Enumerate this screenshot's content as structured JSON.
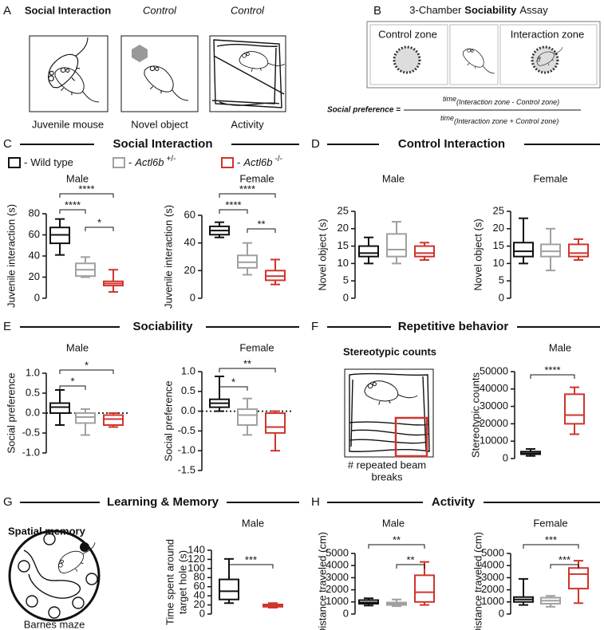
{
  "panel_a": {
    "letter": "A",
    "labels": [
      "Social Interaction",
      "Control",
      "Control"
    ],
    "captions": [
      "Juvenile mouse",
      "Novel object",
      "Activity"
    ]
  },
  "panel_b": {
    "letter": "B",
    "title": [
      "3-Chamber",
      "Sociability",
      "Assay"
    ],
    "zones": [
      "Control zone",
      "Interaction zone"
    ],
    "formula": {
      "lhs": "Social preference =",
      "numerator": [
        "time",
        "(Interaction zone - Control zone)"
      ],
      "denominator": [
        "time",
        "(Interaction zone + Control zone)"
      ]
    }
  },
  "sections": [
    {
      "letter": "C",
      "title": "Social Interaction"
    },
    {
      "letter": "D",
      "title": "Control Interaction"
    },
    {
      "letter": "E",
      "title": "Sociability"
    },
    {
      "letter": "F",
      "title": "Repetitive behavior"
    },
    {
      "letter": "G",
      "title": "Learning & Memory"
    },
    {
      "letter": "H",
      "title": "Activity"
    }
  ],
  "legend": [
    {
      "dash": "-",
      "label": "Wild type",
      "color": "#111111"
    },
    {
      "dash": "-",
      "gene": "Actl6b",
      "genotype": "+/-",
      "color": "#a0a0a0"
    },
    {
      "dash": "-",
      "gene": "Actl6b",
      "genotype": "-/-",
      "color": "#d0342c"
    }
  ],
  "illustrations": {
    "stereotypy_title": "Stereotypic counts",
    "stereotypy_caption": [
      "# repeated beam",
      "breaks"
    ],
    "spatial_title": "Spatial memory",
    "spatial_caption": "Barnes maze"
  },
  "chart_data": [
    {
      "type": "box",
      "title": "Male",
      "ylabel": [
        "Juvenile interaction (s)"
      ],
      "ylim": [
        0,
        80
      ],
      "yticks": [
        0,
        20,
        40,
        60,
        80
      ],
      "boxes": [
        {
          "color": "#111111",
          "min": 41,
          "q1": 52,
          "median": 60,
          "q3": 67,
          "max": 75
        },
        {
          "color": "#a0a0a0",
          "min": 20,
          "q1": 21,
          "median": 27,
          "q3": 33,
          "max": 39
        },
        {
          "color": "#d0342c",
          "min": 6,
          "q1": 12,
          "median": 14,
          "q3": 16,
          "max": 27
        }
      ],
      "comparisons": [
        {
          "groups": [
            0,
            2
          ],
          "label": "****"
        },
        {
          "groups": [
            0,
            1
          ],
          "label": "****"
        },
        {
          "groups": [
            1,
            2
          ],
          "label": "*"
        }
      ]
    },
    {
      "type": "box",
      "title": "Female",
      "ylabel": [
        "Juvenile interaction (s)"
      ],
      "ylim": [
        0,
        60
      ],
      "yticks": [
        0,
        20,
        40,
        60
      ],
      "boxes": [
        {
          "color": "#111111",
          "min": 44,
          "q1": 46,
          "median": 49,
          "q3": 52,
          "max": 55
        },
        {
          "color": "#a0a0a0",
          "min": 17,
          "q1": 22,
          "median": 26,
          "q3": 31,
          "max": 40
        },
        {
          "color": "#d0342c",
          "min": 10,
          "q1": 13,
          "median": 16,
          "q3": 20,
          "max": 28
        }
      ],
      "comparisons": [
        {
          "groups": [
            0,
            2
          ],
          "label": "****"
        },
        {
          "groups": [
            0,
            1
          ],
          "label": "****"
        },
        {
          "groups": [
            1,
            2
          ],
          "label": "**"
        }
      ]
    },
    {
      "type": "box",
      "title": "Male",
      "ylabel": [
        "Novel object (s)"
      ],
      "ylim": [
        0,
        25
      ],
      "yticks": [
        0,
        5,
        10,
        15,
        20,
        25
      ],
      "boxes": [
        {
          "color": "#111111",
          "min": 10,
          "q1": 12,
          "median": 13,
          "q3": 15,
          "max": 17.5
        },
        {
          "color": "#a0a0a0",
          "min": 10,
          "q1": 12,
          "median": 14,
          "q3": 18.5,
          "max": 22
        },
        {
          "color": "#d0342c",
          "min": 11,
          "q1": 12,
          "median": 13,
          "q3": 15,
          "max": 16
        }
      ],
      "comparisons": []
    },
    {
      "type": "box",
      "title": "Female",
      "ylabel": [
        "Novel object (s)"
      ],
      "ylim": [
        0,
        25
      ],
      "yticks": [
        0,
        5,
        10,
        15,
        20,
        25
      ],
      "boxes": [
        {
          "color": "#111111",
          "min": 10,
          "q1": 12,
          "median": 13.5,
          "q3": 16,
          "max": 23
        },
        {
          "color": "#a0a0a0",
          "min": 8,
          "q1": 12,
          "median": 13.5,
          "q3": 15.5,
          "max": 20
        },
        {
          "color": "#d0342c",
          "min": 11,
          "q1": 12,
          "median": 13,
          "q3": 15.5,
          "max": 17
        }
      ],
      "comparisons": []
    },
    {
      "type": "box",
      "title": "Male",
      "ylabel": [
        "Social preference"
      ],
      "ylim": [
        -1,
        1
      ],
      "yticks": [
        {
          "value": -1,
          "label": "-1.0"
        },
        {
          "value": -0.5,
          "label": "-0.5"
        },
        {
          "value": 0,
          "label": "0.0"
        },
        {
          "value": 0.5,
          "label": "0.5"
        },
        {
          "value": 1,
          "label": "1.0"
        }
      ],
      "reference_line": 0,
      "boxes": [
        {
          "color": "#111111",
          "min": -0.3,
          "q1": 0,
          "median": 0.15,
          "q3": 0.25,
          "max": 0.58
        },
        {
          "color": "#a0a0a0",
          "min": -0.55,
          "q1": -0.25,
          "median": -0.1,
          "q3": 0,
          "max": 0.1
        },
        {
          "color": "#d0342c",
          "min": -0.35,
          "q1": -0.3,
          "median": -0.15,
          "q3": -0.05,
          "max": 0
        }
      ],
      "comparisons": [
        {
          "groups": [
            0,
            2
          ],
          "label": "*"
        },
        {
          "groups": [
            0,
            1
          ],
          "label": "*"
        }
      ]
    },
    {
      "type": "box",
      "title": "Female",
      "ylabel": [
        "Social preference"
      ],
      "ylim": [
        -1.5,
        1
      ],
      "yticks": [
        {
          "value": -1.5,
          "label": "-1.5"
        },
        {
          "value": -1,
          "label": "-1.0"
        },
        {
          "value": -0.5,
          "label": "-0.5"
        },
        {
          "value": 0,
          "label": "0.0"
        },
        {
          "value": 0.5,
          "label": "0.5"
        },
        {
          "value": 1,
          "label": "1.0"
        }
      ],
      "reference_line": 0,
      "boxes": [
        {
          "color": "#111111",
          "min": 0,
          "q1": 0.1,
          "median": 0.2,
          "q3": 0.3,
          "max": 0.88
        },
        {
          "color": "#a0a0a0",
          "min": -0.6,
          "q1": -0.35,
          "median": -0.1,
          "q3": 0.05,
          "max": 0.32
        },
        {
          "color": "#d0342c",
          "min": -1,
          "q1": -0.55,
          "median": -0.4,
          "q3": -0.05,
          "max": 0
        }
      ],
      "comparisons": [
        {
          "groups": [
            0,
            2
          ],
          "label": "**"
        },
        {
          "groups": [
            0,
            1
          ],
          "label": "*"
        }
      ]
    },
    {
      "type": "box",
      "title": "Male",
      "ylabel": [
        "Stereotypic counts"
      ],
      "ylim": [
        0,
        50000
      ],
      "yticks": [
        0,
        10000,
        20000,
        30000,
        40000,
        50000
      ],
      "boxes": [
        {
          "color": "#111111",
          "min": 1500,
          "q1": 2500,
          "median": 3000,
          "q3": 4000,
          "max": 5500
        },
        {
          "color": "#d0342c",
          "min": 14000,
          "q1": 20000,
          "median": 25000,
          "q3": 37000,
          "max": 41000
        }
      ],
      "comparisons": [
        {
          "groups": [
            0,
            1
          ],
          "label": "****"
        }
      ]
    },
    {
      "type": "box",
      "title": "Male",
      "ylabel": [
        "Time spent around",
        "target hole (s)"
      ],
      "ylim": [
        0,
        140
      ],
      "yticks": [
        0,
        20,
        40,
        60,
        80,
        100,
        120,
        140
      ],
      "boxes": [
        {
          "color": "#111111",
          "min": 24,
          "q1": 32,
          "median": 50,
          "q3": 76,
          "max": 121
        },
        {
          "color": "#d0342c",
          "min": 14,
          "q1": 16,
          "median": 18,
          "q3": 21,
          "max": 24
        }
      ],
      "comparisons": [
        {
          "groups": [
            0,
            1
          ],
          "label": "***"
        }
      ]
    },
    {
      "type": "box",
      "title": "Male",
      "ylabel": [
        "Distance traveled (cm)"
      ],
      "ylim": [
        0,
        5000
      ],
      "yticks": [
        0,
        1000,
        2000,
        3000,
        4000,
        5000
      ],
      "boxes": [
        {
          "color": "#111111",
          "min": 700,
          "q1": 850,
          "median": 950,
          "q3": 1150,
          "max": 1300
        },
        {
          "color": "#a0a0a0",
          "min": 650,
          "q1": 750,
          "median": 850,
          "q3": 950,
          "max": 1200
        },
        {
          "color": "#d0342c",
          "min": 750,
          "q1": 1000,
          "median": 1800,
          "q3": 3200,
          "max": 4300
        }
      ],
      "comparisons": [
        {
          "groups": [
            0,
            2
          ],
          "label": "**"
        },
        {
          "groups": [
            1,
            2
          ],
          "label": "**"
        }
      ]
    },
    {
      "type": "box",
      "title": "Female",
      "ylabel": [
        "Distance traveled (cm)"
      ],
      "ylim": [
        0,
        5000
      ],
      "yticks": [
        0,
        1000,
        2000,
        3000,
        4000,
        5000
      ],
      "boxes": [
        {
          "color": "#111111",
          "min": 750,
          "q1": 1000,
          "median": 1200,
          "q3": 1400,
          "max": 2900
        },
        {
          "color": "#a0a0a0",
          "min": 600,
          "q1": 850,
          "median": 1100,
          "q3": 1350,
          "max": 1500
        },
        {
          "color": "#d0342c",
          "min": 900,
          "q1": 2100,
          "median": 3300,
          "q3": 3800,
          "max": 4400
        }
      ],
      "comparisons": [
        {
          "groups": [
            0,
            2
          ],
          "label": "***"
        },
        {
          "groups": [
            1,
            2
          ],
          "label": "***"
        }
      ]
    }
  ]
}
